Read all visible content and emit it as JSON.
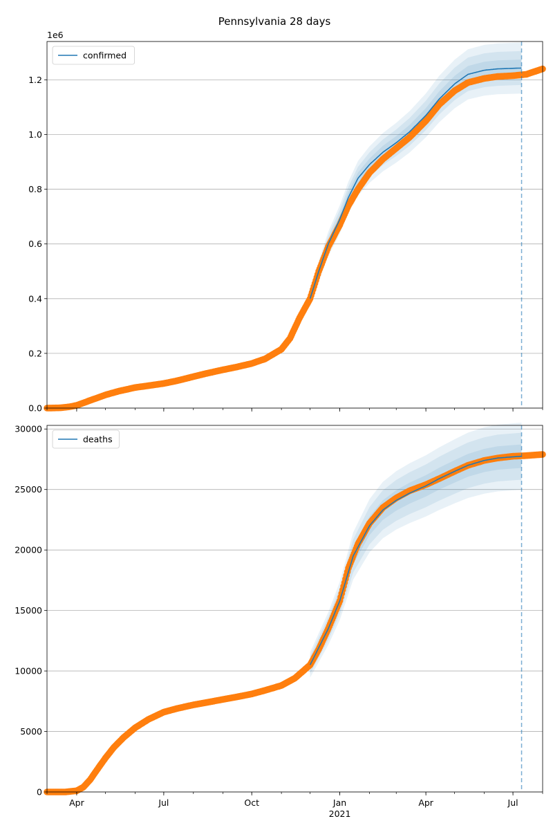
{
  "figure": {
    "title": "Pennsylvania 28 days"
  },
  "colors": {
    "model": "#1f77b4",
    "observed": "#ff7f0e",
    "band": "#1f77b4",
    "grid": "#b0b0b0",
    "cutoff": "#1f77b4"
  },
  "x_axis": {
    "range": [
      "2020-03-01",
      "2021-08-01"
    ],
    "major_ticks": [
      {
        "date": "2020-04-01",
        "label": "Apr"
      },
      {
        "date": "2020-07-01",
        "label": "Jul"
      },
      {
        "date": "2020-10-01",
        "label": "Oct"
      },
      {
        "date": "2021-01-01",
        "label": "Jan"
      },
      {
        "date": "2021-04-01",
        "label": "Apr"
      },
      {
        "date": "2021-07-01",
        "label": "Jul"
      }
    ],
    "year_label": "2021",
    "forecast_cutoff": "2021-07-10"
  },
  "chart_data": [
    {
      "type": "line",
      "legend": "confirmed",
      "legend_location": "upper left",
      "offset_label": "1e6",
      "ylim": [
        0,
        1.34
      ],
      "yticks": [
        {
          "value": 0,
          "label": "0.0"
        },
        {
          "value": 0.2,
          "label": "0.2"
        },
        {
          "value": 0.4,
          "label": "0.4"
        },
        {
          "value": 0.6,
          "label": "0.6"
        },
        {
          "value": 0.8,
          "label": "0.8"
        },
        {
          "value": 1.0,
          "label": "1.0"
        },
        {
          "value": 1.2,
          "label": "1.2"
        }
      ],
      "grid": "horizontal",
      "observed": [
        [
          "2020-03-01",
          0
        ],
        [
          "2020-03-15",
          0.001
        ],
        [
          "2020-03-25",
          0.005
        ],
        [
          "2020-04-01",
          0.01
        ],
        [
          "2020-04-15",
          0.028
        ],
        [
          "2020-05-01",
          0.048
        ],
        [
          "2020-05-15",
          0.062
        ],
        [
          "2020-06-01",
          0.075
        ],
        [
          "2020-06-15",
          0.082
        ],
        [
          "2020-07-01",
          0.09
        ],
        [
          "2020-07-15",
          0.1
        ],
        [
          "2020-08-01",
          0.115
        ],
        [
          "2020-08-15",
          0.127
        ],
        [
          "2020-09-01",
          0.14
        ],
        [
          "2020-09-15",
          0.15
        ],
        [
          "2020-10-01",
          0.163
        ],
        [
          "2020-10-15",
          0.18
        ],
        [
          "2020-11-01",
          0.215
        ],
        [
          "2020-11-10",
          0.255
        ],
        [
          "2020-11-20",
          0.33
        ],
        [
          "2020-12-01",
          0.4
        ],
        [
          "2020-12-10",
          0.5
        ],
        [
          "2020-12-20",
          0.59
        ],
        [
          "2021-01-01",
          0.67
        ],
        [
          "2021-01-10",
          0.74
        ],
        [
          "2021-01-20",
          0.8
        ],
        [
          "2021-02-01",
          0.86
        ],
        [
          "2021-02-15",
          0.91
        ],
        [
          "2021-03-01",
          0.95
        ],
        [
          "2021-03-15",
          0.99
        ],
        [
          "2021-04-01",
          1.05
        ],
        [
          "2021-04-15",
          1.11
        ],
        [
          "2021-05-01",
          1.16
        ],
        [
          "2021-05-15",
          1.19
        ],
        [
          "2021-06-01",
          1.205
        ],
        [
          "2021-06-15",
          1.212
        ],
        [
          "2021-07-01",
          1.215
        ],
        [
          "2021-07-15",
          1.22
        ],
        [
          "2021-08-01",
          1.24
        ]
      ],
      "model": [
        [
          "2020-12-01",
          0.4
        ],
        [
          "2020-12-10",
          0.5
        ],
        [
          "2020-12-20",
          0.6
        ],
        [
          "2021-01-01",
          0.69
        ],
        [
          "2021-01-10",
          0.77
        ],
        [
          "2021-01-20",
          0.84
        ],
        [
          "2021-02-01",
          0.89
        ],
        [
          "2021-02-15",
          0.935
        ],
        [
          "2021-03-01",
          0.97
        ],
        [
          "2021-03-15",
          1.01
        ],
        [
          "2021-04-01",
          1.07
        ],
        [
          "2021-04-15",
          1.13
        ],
        [
          "2021-05-01",
          1.185
        ],
        [
          "2021-05-15",
          1.22
        ],
        [
          "2021-06-01",
          1.235
        ],
        [
          "2021-06-15",
          1.24
        ],
        [
          "2021-07-01",
          1.242
        ],
        [
          "2021-07-10",
          1.243
        ]
      ],
      "band_relative_spread": [
        0.025,
        0.05,
        0.075
      ]
    },
    {
      "type": "line",
      "legend": "deaths",
      "legend_location": "upper left",
      "ylim": [
        0,
        30300
      ],
      "yticks": [
        {
          "value": 0,
          "label": "0"
        },
        {
          "value": 5000,
          "label": "5000"
        },
        {
          "value": 10000,
          "label": "10000"
        },
        {
          "value": 15000,
          "label": "15000"
        },
        {
          "value": 20000,
          "label": "20000"
        },
        {
          "value": 25000,
          "label": "25000"
        },
        {
          "value": 30000,
          "label": "30000"
        }
      ],
      "grid": "horizontal",
      "observed": [
        [
          "2020-03-01",
          0
        ],
        [
          "2020-03-20",
          0
        ],
        [
          "2020-04-01",
          100
        ],
        [
          "2020-04-08",
          400
        ],
        [
          "2020-04-15",
          1000
        ],
        [
          "2020-04-22",
          1800
        ],
        [
          "2020-05-01",
          2800
        ],
        [
          "2020-05-10",
          3700
        ],
        [
          "2020-05-20",
          4500
        ],
        [
          "2020-06-01",
          5300
        ],
        [
          "2020-06-15",
          6000
        ],
        [
          "2020-07-01",
          6600
        ],
        [
          "2020-07-15",
          6900
        ],
        [
          "2020-08-01",
          7200
        ],
        [
          "2020-08-15",
          7400
        ],
        [
          "2020-09-01",
          7650
        ],
        [
          "2020-09-15",
          7850
        ],
        [
          "2020-10-01",
          8100
        ],
        [
          "2020-10-15",
          8400
        ],
        [
          "2020-11-01",
          8800
        ],
        [
          "2020-11-15",
          9400
        ],
        [
          "2020-12-01",
          10500
        ],
        [
          "2020-12-10",
          11800
        ],
        [
          "2020-12-20",
          13500
        ],
        [
          "2021-01-01",
          15800
        ],
        [
          "2021-01-10",
          18500
        ],
        [
          "2021-01-20",
          20500
        ],
        [
          "2021-02-01",
          22200
        ],
        [
          "2021-02-15",
          23500
        ],
        [
          "2021-03-01",
          24300
        ],
        [
          "2021-03-15",
          24900
        ],
        [
          "2021-04-01",
          25400
        ],
        [
          "2021-04-15",
          25900
        ],
        [
          "2021-05-01",
          26500
        ],
        [
          "2021-05-15",
          27000
        ],
        [
          "2021-06-01",
          27400
        ],
        [
          "2021-06-15",
          27600
        ],
        [
          "2021-07-01",
          27750
        ],
        [
          "2021-07-15",
          27800
        ],
        [
          "2021-08-01",
          27900
        ]
      ],
      "model": [
        [
          "2020-12-01",
          10500
        ],
        [
          "2020-12-20",
          13500
        ],
        [
          "2021-01-01",
          15800
        ],
        [
          "2021-01-15",
          19500
        ],
        [
          "2021-02-01",
          22000
        ],
        [
          "2021-02-15",
          23300
        ],
        [
          "2021-03-01",
          24100
        ],
        [
          "2021-03-15",
          24700
        ],
        [
          "2021-04-01",
          25300
        ],
        [
          "2021-04-15",
          25900
        ],
        [
          "2021-05-01",
          26500
        ],
        [
          "2021-05-15",
          27000
        ],
        [
          "2021-06-01",
          27400
        ],
        [
          "2021-06-15",
          27600
        ],
        [
          "2021-07-01",
          27700
        ],
        [
          "2021-07-10",
          27750
        ]
      ],
      "band_relative_spread": [
        0.035,
        0.07,
        0.1
      ]
    }
  ]
}
